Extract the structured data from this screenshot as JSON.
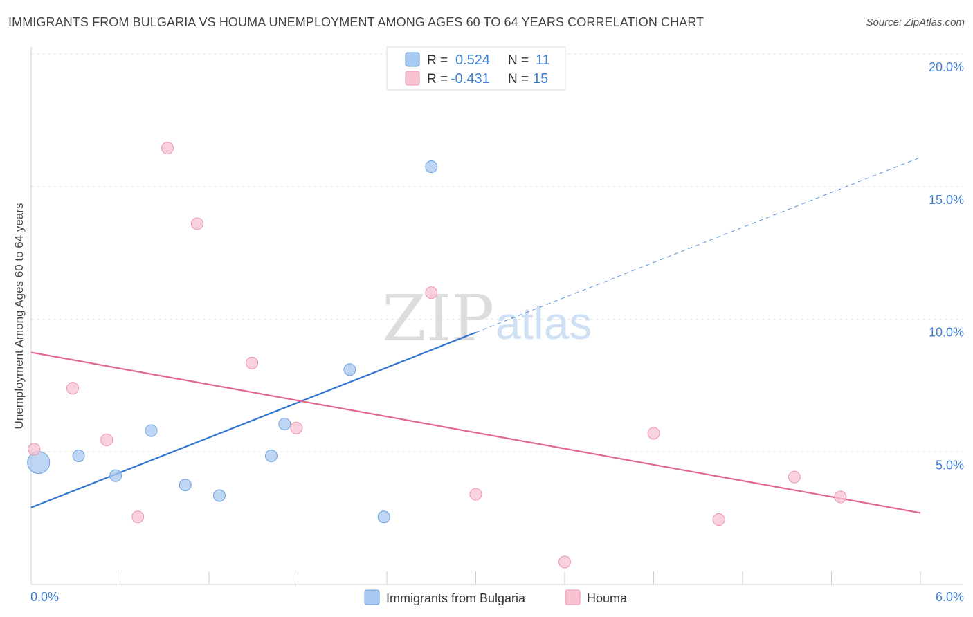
{
  "chart_data": {
    "type": "scatter",
    "title": "IMMIGRANTS FROM BULGARIA VS HOUMA UNEMPLOYMENT AMONG AGES 60 TO 64 YEARS CORRELATION CHART",
    "source": "Source: ZipAtlas.com",
    "xlabel": "",
    "ylabel": "Unemployment Among Ages 60 to 64 years",
    "xlim": [
      0,
      6
    ],
    "ylim": [
      0,
      20
    ],
    "x_tick_labels": [
      "0.0%",
      "6.0%"
    ],
    "y_ticks": [
      5,
      10,
      15,
      20
    ],
    "y_tick_labels": [
      "5.0%",
      "10.0%",
      "15.0%",
      "20.0%"
    ],
    "grid": true,
    "watermark": {
      "zip": "ZIP",
      "atlas": "atlas"
    },
    "legend": {
      "rows": [
        {
          "r_label": "R =",
          "r_value": "0.524",
          "n_label": "N =",
          "n_value": "11"
        },
        {
          "r_label": "R =",
          "r_value": "-0.431",
          "n_label": "N =",
          "n_value": "15"
        }
      ]
    },
    "series": [
      {
        "name": "Immigrants from Bulgaria",
        "color": "#a8c8f0",
        "stroke": "#6d9fdf",
        "line_color": "#2e74d0",
        "points": [
          {
            "x": 0.05,
            "y": 4.6,
            "size": 3
          },
          {
            "x": 0.32,
            "y": 4.85,
            "size": 1
          },
          {
            "x": 0.57,
            "y": 4.1,
            "size": 1
          },
          {
            "x": 0.81,
            "y": 5.8,
            "size": 1
          },
          {
            "x": 1.04,
            "y": 3.75,
            "size": 1
          },
          {
            "x": 1.27,
            "y": 3.35,
            "size": 1
          },
          {
            "x": 1.62,
            "y": 4.85,
            "size": 1
          },
          {
            "x": 1.71,
            "y": 6.05,
            "size": 1
          },
          {
            "x": 2.15,
            "y": 8.1,
            "size": 1
          },
          {
            "x": 2.38,
            "y": 2.55,
            "size": 1
          },
          {
            "x": 2.7,
            "y": 15.75,
            "size": 1
          }
        ],
        "trend": {
          "x1": 0.0,
          "y1": 2.9,
          "x2": 3.0,
          "y2": 9.5,
          "x3": 6.0,
          "y3": 16.1
        }
      },
      {
        "name": "Houma",
        "color": "#f8c3d1",
        "stroke": "#ec96ae",
        "line_color": "#e2668f",
        "points": [
          {
            "x": 0.02,
            "y": 5.1,
            "size": 1
          },
          {
            "x": 0.28,
            "y": 7.4,
            "size": 1
          },
          {
            "x": 0.51,
            "y": 5.45,
            "size": 1
          },
          {
            "x": 0.72,
            "y": 2.55,
            "size": 1
          },
          {
            "x": 0.92,
            "y": 16.45,
            "size": 1
          },
          {
            "x": 1.12,
            "y": 13.6,
            "size": 1
          },
          {
            "x": 1.49,
            "y": 8.35,
            "size": 1
          },
          {
            "x": 1.79,
            "y": 5.9,
            "size": 1
          },
          {
            "x": 2.7,
            "y": 11.0,
            "size": 1
          },
          {
            "x": 3.0,
            "y": 3.4,
            "size": 1
          },
          {
            "x": 3.6,
            "y": 0.85,
            "size": 1
          },
          {
            "x": 4.2,
            "y": 5.7,
            "size": 1
          },
          {
            "x": 4.64,
            "y": 2.45,
            "size": 1
          },
          {
            "x": 5.15,
            "y": 4.05,
            "size": 1
          },
          {
            "x": 5.46,
            "y": 3.3,
            "size": 1
          }
        ],
        "trend": {
          "x1": 0.0,
          "y1": 8.75,
          "x2": 6.0,
          "y2": 2.7
        }
      }
    ]
  }
}
